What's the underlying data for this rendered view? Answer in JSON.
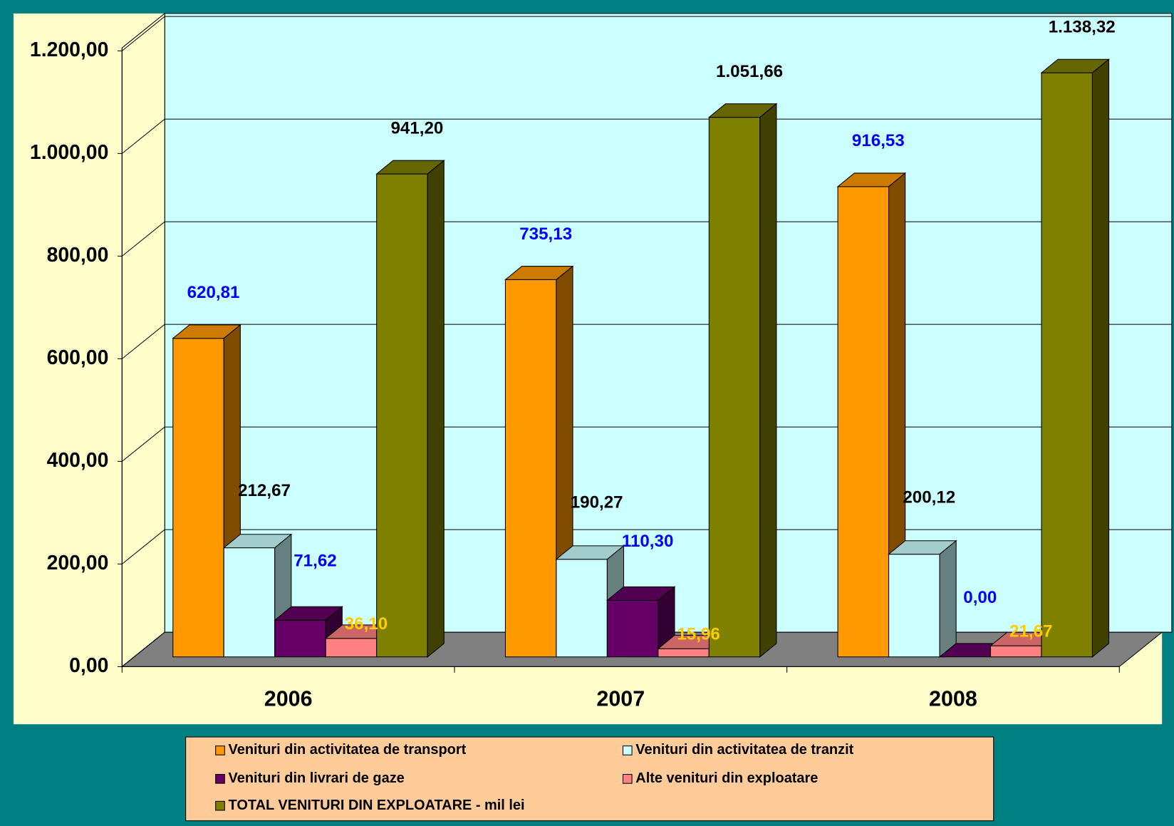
{
  "chart_data": {
    "type": "bar",
    "categories": [
      "2006",
      "2007",
      "2008"
    ],
    "series": [
      {
        "name": "Venituri din activitatea de transport",
        "color": "#FF9900",
        "label_color": "#0000FF",
        "values": [
          620.81,
          735.13,
          916.53
        ],
        "value_labels": [
          "620,81",
          "735,13",
          "916,53"
        ]
      },
      {
        "name": "Venituri din activitatea de tranzit",
        "color": "#CCFFFF",
        "label_color": "#000000",
        "values": [
          212.67,
          190.27,
          200.12
        ],
        "value_labels": [
          "212,67",
          "190,27",
          "200,12"
        ]
      },
      {
        "name": "Venituri din livrari de gaze",
        "color": "#660066",
        "label_color": "#0000FF",
        "values": [
          71.62,
          110.3,
          0.0
        ],
        "value_labels": [
          "71,62",
          "110,30",
          "0,00"
        ]
      },
      {
        "name": "Alte venituri din exploatare",
        "color": "#FF8080",
        "label_color": "#FFCC00",
        "values": [
          36.1,
          15.96,
          21.67
        ],
        "value_labels": [
          "36,10",
          "15,96",
          "21,67"
        ]
      },
      {
        "name": "TOTAL VENITURI DIN EXPLOATARE  - mil lei",
        "color": "#808000",
        "label_color": "#000000",
        "values": [
          941.2,
          1051.66,
          1138.32
        ],
        "value_labels": [
          "941,20",
          "1.051,66",
          "1.138,32"
        ]
      }
    ],
    "ylim": [
      0,
      1200
    ],
    "yticks": [
      {
        "value": 0,
        "label": "0,00"
      },
      {
        "value": 200,
        "label": "200,00"
      },
      {
        "value": 400,
        "label": "400,00"
      },
      {
        "value": 600,
        "label": "600,00"
      },
      {
        "value": 800,
        "label": "800,00"
      },
      {
        "value": 1000,
        "label": "1.000,00"
      },
      {
        "value": 1200,
        "label": "1.200,00"
      }
    ],
    "grid": true
  }
}
